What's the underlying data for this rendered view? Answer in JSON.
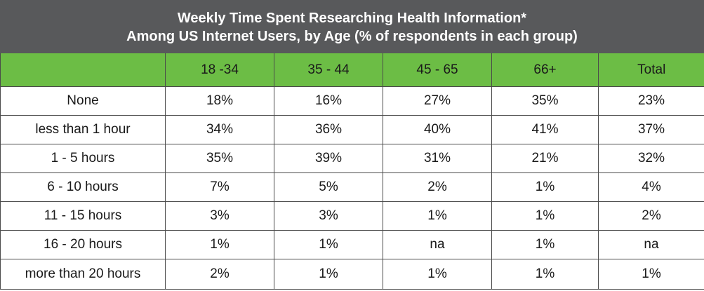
{
  "chart_data": {
    "type": "table",
    "title_line1": "Weekly Time Spent Researching Health Information*",
    "title_line2": "Among US Internet Users, by Age (% of respondents in each group)",
    "columns": [
      "",
      "18 -34",
      "35 - 44",
      "45 - 65",
      "66+",
      "Total"
    ],
    "rows": [
      {
        "label": "None",
        "values": [
          "18%",
          "16%",
          "27%",
          "35%",
          "23%"
        ]
      },
      {
        "label": "less than 1 hour",
        "values": [
          "34%",
          "36%",
          "40%",
          "41%",
          "37%"
        ]
      },
      {
        "label": "1 - 5 hours",
        "values": [
          "35%",
          "39%",
          "31%",
          "21%",
          "32%"
        ]
      },
      {
        "label": "6 - 10 hours",
        "values": [
          "7%",
          "5%",
          "2%",
          "1%",
          "4%"
        ]
      },
      {
        "label": "11 - 15 hours",
        "values": [
          "3%",
          "3%",
          "1%",
          "1%",
          "2%"
        ]
      },
      {
        "label": "16 - 20 hours",
        "values": [
          "1%",
          "1%",
          "na",
          "1%",
          "na"
        ]
      },
      {
        "label": "more than 20 hours",
        "values": [
          "2%",
          "1%",
          "1%",
          "1%",
          "1%"
        ]
      }
    ],
    "colors": {
      "title_background": "#58595b",
      "header_background": "#6cbd45"
    }
  }
}
